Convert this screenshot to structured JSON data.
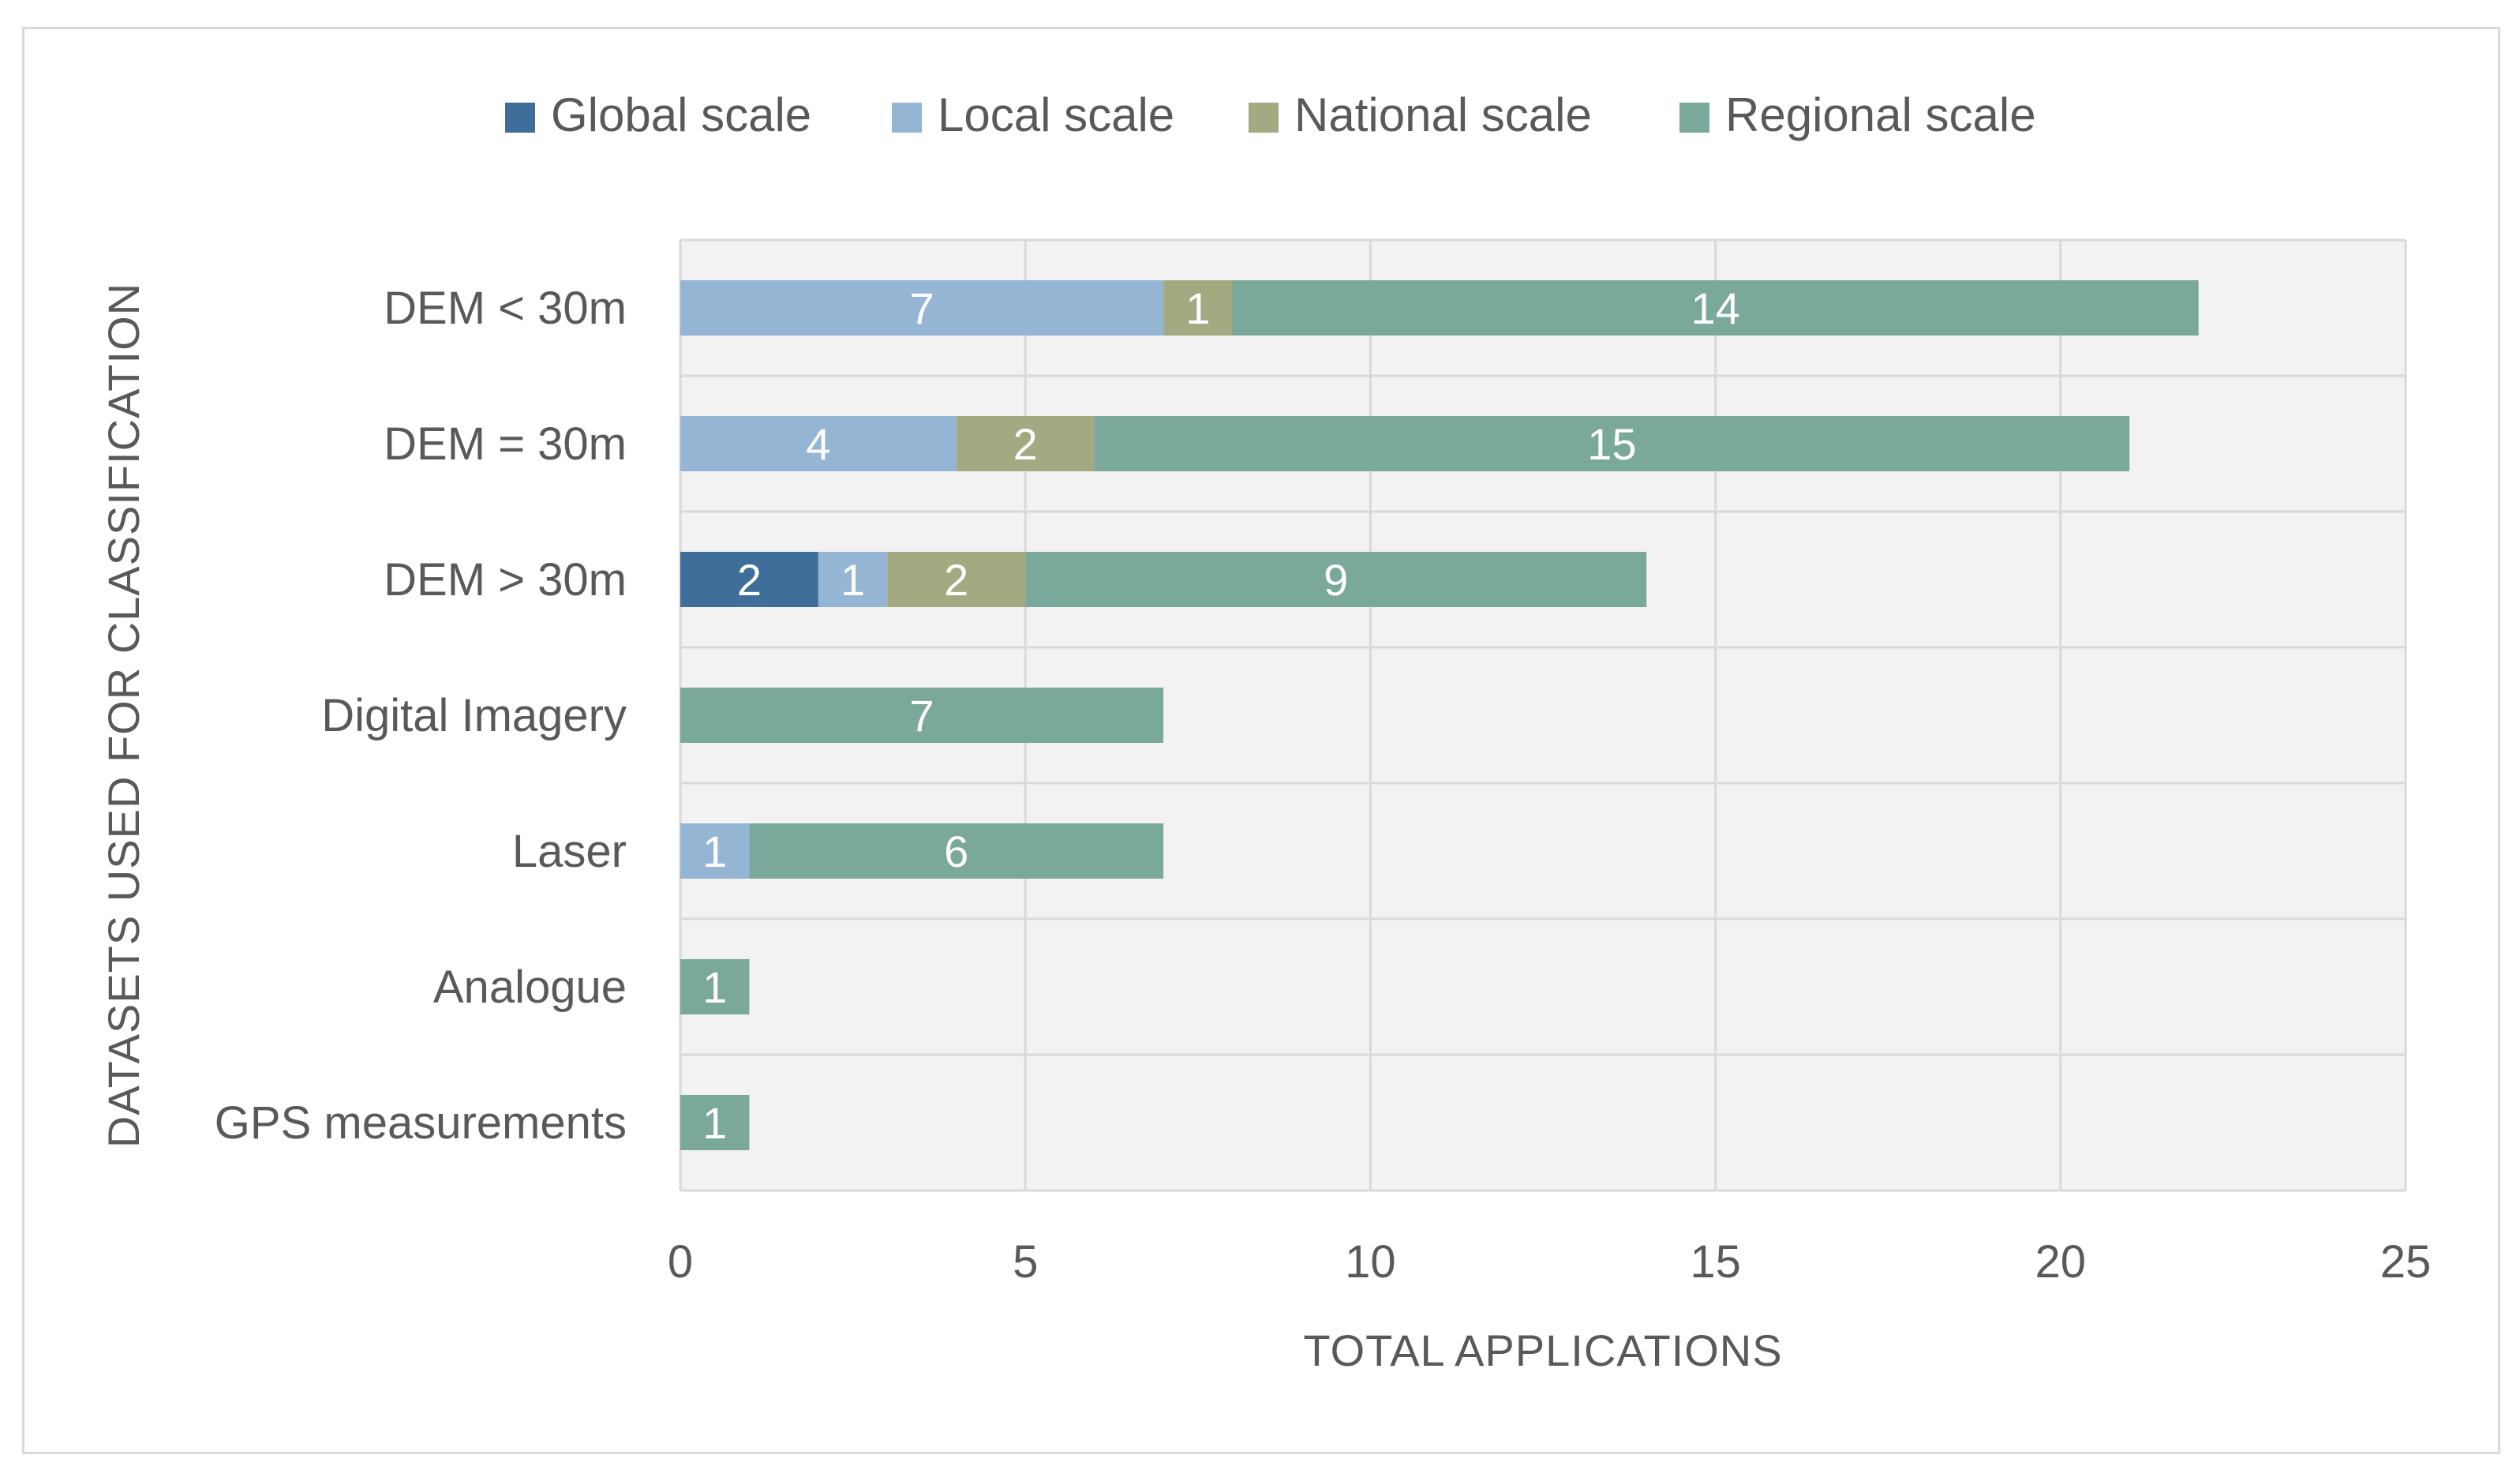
{
  "chart_data": {
    "type": "bar",
    "orientation": "horizontal",
    "stacked": true,
    "title": "",
    "xlabel": "TOTAL APPLICATIONS",
    "ylabel": "DATASETS USED FOR CLASSIFICATION",
    "xlim": [
      0,
      25
    ],
    "xticks": [
      "0",
      "5",
      "10",
      "15",
      "20",
      "25"
    ],
    "grid": true,
    "legend_position": "top",
    "categories": [
      "DEM < 30m",
      "DEM = 30m",
      "DEM > 30m",
      "Digital Imagery",
      "Laser",
      "Analogue",
      "GPS measurements"
    ],
    "series": [
      {
        "name": "Global scale",
        "color": "#3e6e99",
        "values": [
          0,
          0,
          2,
          0,
          0,
          0,
          0
        ]
      },
      {
        "name": "Local scale",
        "color": "#95b5d4",
        "values": [
          7,
          4,
          1,
          0,
          1,
          0,
          0
        ]
      },
      {
        "name": "National scale",
        "color": "#a3a981",
        "values": [
          1,
          2,
          2,
          0,
          0,
          0,
          0
        ]
      },
      {
        "name": "Regional scale",
        "color": "#7aa89a",
        "values": [
          14,
          15,
          9,
          7,
          6,
          1,
          1
        ]
      }
    ]
  }
}
